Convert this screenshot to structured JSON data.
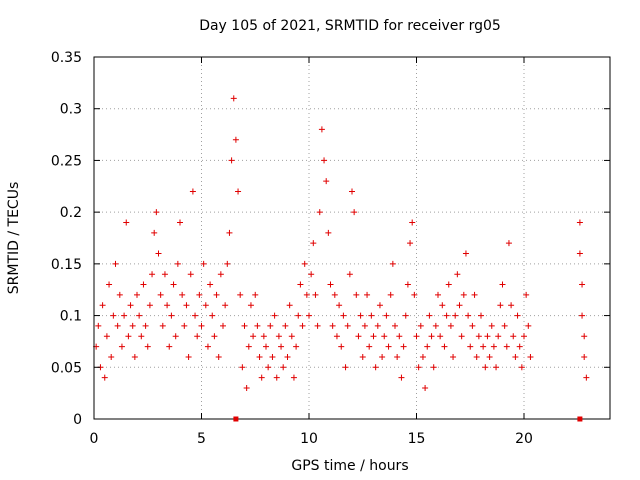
{
  "chart_data": {
    "type": "scatter",
    "title": "Day 105 of 2021, SRMTID for receiver rg05",
    "xlabel": "GPS time / hours",
    "ylabel": "SRMTID / TECUs",
    "xlim": [
      0,
      24
    ],
    "ylim": [
      0,
      0.35
    ],
    "x_ticks": [
      0,
      5,
      10,
      15,
      20
    ],
    "x_tick_labels": [
      "0",
      "5",
      "10",
      "15",
      "20"
    ],
    "y_ticks": [
      0,
      0.05,
      0.1,
      0.15,
      0.2,
      0.25,
      0.3,
      0.35
    ],
    "y_tick_labels": [
      "0",
      "0.05",
      "0.1",
      "0.15",
      "0.2",
      "0.25",
      "0.3",
      "0.35"
    ],
    "grid": true,
    "marker": "+",
    "series_color": "#e00000",
    "series": [
      {
        "name": "SRMTID",
        "points": [
          [
            0.1,
            0.07
          ],
          [
            0.2,
            0.09
          ],
          [
            0.3,
            0.05
          ],
          [
            0.4,
            0.11
          ],
          [
            0.5,
            0.04
          ],
          [
            0.6,
            0.08
          ],
          [
            0.7,
            0.13
          ],
          [
            0.8,
            0.06
          ],
          [
            0.9,
            0.1
          ],
          [
            1.0,
            0.15
          ],
          [
            1.1,
            0.09
          ],
          [
            1.2,
            0.12
          ],
          [
            1.3,
            0.07
          ],
          [
            1.4,
            0.1
          ],
          [
            1.5,
            0.19
          ],
          [
            1.6,
            0.08
          ],
          [
            1.7,
            0.11
          ],
          [
            1.8,
            0.09
          ],
          [
            1.9,
            0.06
          ],
          [
            2.0,
            0.12
          ],
          [
            2.1,
            0.1
          ],
          [
            2.2,
            0.08
          ],
          [
            2.3,
            0.13
          ],
          [
            2.4,
            0.09
          ],
          [
            2.5,
            0.07
          ],
          [
            2.6,
            0.11
          ],
          [
            2.7,
            0.14
          ],
          [
            2.8,
            0.18
          ],
          [
            2.9,
            0.2
          ],
          [
            3.0,
            0.16
          ],
          [
            3.1,
            0.12
          ],
          [
            3.2,
            0.09
          ],
          [
            3.3,
            0.14
          ],
          [
            3.4,
            0.11
          ],
          [
            3.5,
            0.07
          ],
          [
            3.6,
            0.1
          ],
          [
            3.7,
            0.13
          ],
          [
            3.8,
            0.08
          ],
          [
            3.9,
            0.15
          ],
          [
            4.0,
            0.19
          ],
          [
            4.1,
            0.12
          ],
          [
            4.2,
            0.09
          ],
          [
            4.3,
            0.11
          ],
          [
            4.4,
            0.06
          ],
          [
            4.5,
            0.14
          ],
          [
            4.6,
            0.22
          ],
          [
            4.7,
            0.1
          ],
          [
            4.8,
            0.08
          ],
          [
            4.9,
            0.12
          ],
          [
            5.0,
            0.09
          ],
          [
            5.1,
            0.15
          ],
          [
            5.2,
            0.11
          ],
          [
            5.3,
            0.07
          ],
          [
            5.4,
            0.13
          ],
          [
            5.5,
            0.1
          ],
          [
            5.6,
            0.08
          ],
          [
            5.7,
            0.12
          ],
          [
            5.8,
            0.06
          ],
          [
            5.9,
            0.14
          ],
          [
            6.0,
            0.09
          ],
          [
            6.1,
            0.11
          ],
          [
            6.2,
            0.15
          ],
          [
            6.3,
            0.18
          ],
          [
            6.4,
            0.25
          ],
          [
            6.5,
            0.31
          ],
          [
            6.6,
            0.27
          ],
          [
            6.7,
            0.22
          ],
          [
            6.8,
            0.12
          ],
          [
            6.9,
            0.05
          ],
          [
            7.0,
            0.09
          ],
          [
            7.1,
            0.03
          ],
          [
            7.2,
            0.07
          ],
          [
            7.3,
            0.11
          ],
          [
            7.4,
            0.08
          ],
          [
            7.5,
            0.12
          ],
          [
            7.6,
            0.09
          ],
          [
            7.7,
            0.06
          ],
          [
            7.8,
            0.04
          ],
          [
            7.9,
            0.08
          ],
          [
            8.0,
            0.07
          ],
          [
            8.1,
            0.05
          ],
          [
            8.2,
            0.09
          ],
          [
            8.3,
            0.06
          ],
          [
            8.4,
            0.1
          ],
          [
            8.5,
            0.04
          ],
          [
            8.6,
            0.08
          ],
          [
            8.7,
            0.07
          ],
          [
            8.8,
            0.05
          ],
          [
            8.9,
            0.09
          ],
          [
            9.0,
            0.06
          ],
          [
            9.1,
            0.11
          ],
          [
            9.2,
            0.08
          ],
          [
            9.3,
            0.04
          ],
          [
            9.4,
            0.07
          ],
          [
            9.5,
            0.1
          ],
          [
            9.6,
            0.13
          ],
          [
            9.7,
            0.09
          ],
          [
            9.8,
            0.15
          ],
          [
            9.9,
            0.12
          ],
          [
            10.0,
            0.1
          ],
          [
            10.1,
            0.14
          ],
          [
            10.2,
            0.17
          ],
          [
            10.3,
            0.12
          ],
          [
            10.4,
            0.09
          ],
          [
            10.5,
            0.2
          ],
          [
            10.6,
            0.28
          ],
          [
            10.7,
            0.25
          ],
          [
            10.8,
            0.23
          ],
          [
            10.9,
            0.18
          ],
          [
            11.0,
            0.13
          ],
          [
            11.1,
            0.09
          ],
          [
            11.2,
            0.12
          ],
          [
            11.3,
            0.08
          ],
          [
            11.4,
            0.11
          ],
          [
            11.5,
            0.07
          ],
          [
            11.6,
            0.1
          ],
          [
            11.7,
            0.05
          ],
          [
            11.8,
            0.09
          ],
          [
            11.9,
            0.14
          ],
          [
            12.0,
            0.22
          ],
          [
            12.1,
            0.2
          ],
          [
            12.2,
            0.12
          ],
          [
            12.3,
            0.08
          ],
          [
            12.4,
            0.1
          ],
          [
            12.5,
            0.06
          ],
          [
            12.6,
            0.09
          ],
          [
            12.7,
            0.12
          ],
          [
            12.8,
            0.07
          ],
          [
            12.9,
            0.1
          ],
          [
            13.0,
            0.08
          ],
          [
            13.1,
            0.05
          ],
          [
            13.2,
            0.09
          ],
          [
            13.3,
            0.11
          ],
          [
            13.4,
            0.06
          ],
          [
            13.5,
            0.08
          ],
          [
            13.6,
            0.1
          ],
          [
            13.7,
            0.07
          ],
          [
            13.8,
            0.12
          ],
          [
            13.9,
            0.15
          ],
          [
            14.0,
            0.09
          ],
          [
            14.1,
            0.06
          ],
          [
            14.2,
            0.08
          ],
          [
            14.3,
            0.04
          ],
          [
            14.4,
            0.07
          ],
          [
            14.5,
            0.1
          ],
          [
            14.6,
            0.13
          ],
          [
            14.7,
            0.17
          ],
          [
            14.8,
            0.19
          ],
          [
            14.9,
            0.12
          ],
          [
            15.0,
            0.08
          ],
          [
            15.1,
            0.05
          ],
          [
            15.2,
            0.09
          ],
          [
            15.3,
            0.06
          ],
          [
            15.4,
            0.03
          ],
          [
            15.5,
            0.07
          ],
          [
            15.6,
            0.1
          ],
          [
            15.7,
            0.08
          ],
          [
            15.8,
            0.05
          ],
          [
            15.9,
            0.09
          ],
          [
            16.0,
            0.12
          ],
          [
            16.1,
            0.08
          ],
          [
            16.2,
            0.11
          ],
          [
            16.3,
            0.07
          ],
          [
            16.4,
            0.1
          ],
          [
            16.5,
            0.13
          ],
          [
            16.6,
            0.09
          ],
          [
            16.7,
            0.06
          ],
          [
            16.8,
            0.1
          ],
          [
            16.9,
            0.14
          ],
          [
            17.0,
            0.11
          ],
          [
            17.1,
            0.08
          ],
          [
            17.2,
            0.12
          ],
          [
            17.3,
            0.16
          ],
          [
            17.4,
            0.1
          ],
          [
            17.5,
            0.07
          ],
          [
            17.6,
            0.09
          ],
          [
            17.7,
            0.12
          ],
          [
            17.8,
            0.06
          ],
          [
            17.9,
            0.08
          ],
          [
            18.0,
            0.1
          ],
          [
            18.1,
            0.07
          ],
          [
            18.2,
            0.05
          ],
          [
            18.3,
            0.08
          ],
          [
            18.4,
            0.06
          ],
          [
            18.5,
            0.09
          ],
          [
            18.6,
            0.07
          ],
          [
            18.7,
            0.05
          ],
          [
            18.8,
            0.08
          ],
          [
            18.9,
            0.11
          ],
          [
            19.0,
            0.13
          ],
          [
            19.1,
            0.09
          ],
          [
            19.2,
            0.07
          ],
          [
            19.3,
            0.17
          ],
          [
            19.4,
            0.11
          ],
          [
            19.5,
            0.08
          ],
          [
            19.6,
            0.06
          ],
          [
            19.7,
            0.1
          ],
          [
            19.8,
            0.07
          ],
          [
            19.9,
            0.05
          ],
          [
            20.0,
            0.08
          ],
          [
            20.1,
            0.12
          ],
          [
            20.2,
            0.09
          ],
          [
            20.3,
            0.06
          ],
          [
            22.6,
            0.19
          ],
          [
            22.6,
            0.16
          ],
          [
            22.7,
            0.13
          ],
          [
            22.7,
            0.1
          ],
          [
            22.8,
            0.08
          ],
          [
            22.8,
            0.06
          ],
          [
            22.9,
            0.04
          ]
        ]
      }
    ],
    "x_axis_markers": [
      6.6,
      22.6
    ]
  }
}
